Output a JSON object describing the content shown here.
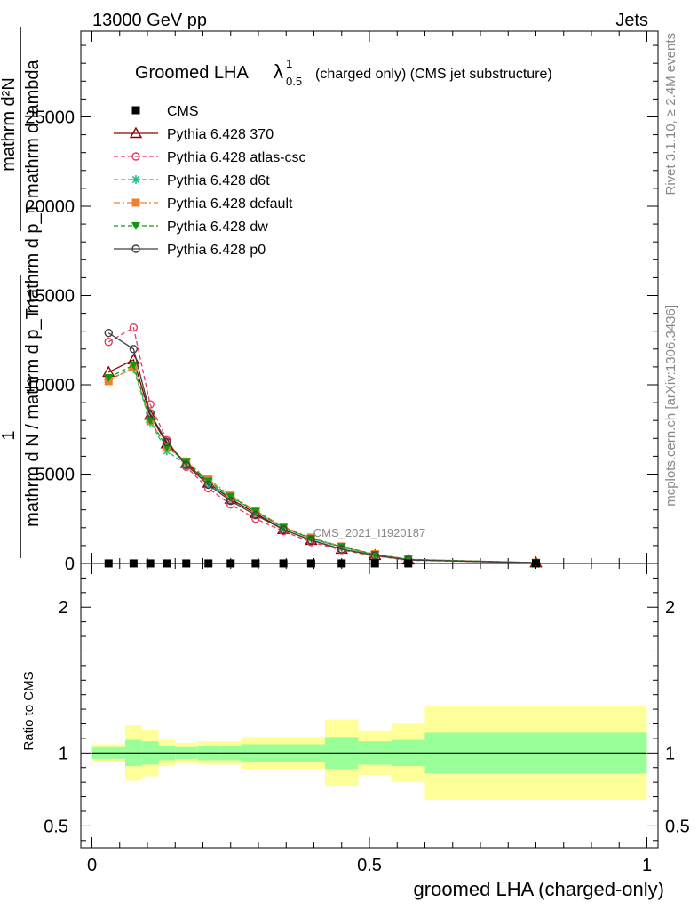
{
  "header": {
    "left": "13000 GeV pp",
    "right": "Jets"
  },
  "title": {
    "main": "Groomed LHA",
    "lambda": "λ",
    "sup": "1",
    "sub": "0.5",
    "rest": "(charged only) (CMS jet substructure)"
  },
  "side_labels": {
    "rivet": "Rivet 3.1.10, ≥ 2.4M events",
    "mcplots": "mcplots.cern.ch [arXiv:1306.3436]"
  },
  "watermark": "CMS_2021_I1920187",
  "main_ylabel": {
    "num1": "mathrm d²N",
    "den1": "mathrm d p_T mathrm d lambda",
    "num2": "1",
    "den2": "mathrm d N / mathrm d p_T"
  },
  "ratio_ylabel": "Ratio to CMS",
  "xlabel": "groomed LHA (charged-only)",
  "legend": [
    {
      "name": "CMS",
      "color": "#000000",
      "marker": "square-filled",
      "dash": "none"
    },
    {
      "name": "Pythia 6.428 370",
      "color": "#8b0000",
      "marker": "triangle-open",
      "dash": "solid"
    },
    {
      "name": "Pythia 6.428 atlas-csc",
      "color": "#e8385b",
      "marker": "circle-open",
      "dash": "dashed"
    },
    {
      "name": "Pythia 6.428 d6t",
      "color": "#1dbf8a",
      "marker": "star",
      "dash": "dashed"
    },
    {
      "name": "Pythia 6.428 default",
      "color": "#f08030",
      "marker": "square-filled",
      "dash": "dashdot"
    },
    {
      "name": "Pythia 6.428 dw",
      "color": "#109a10",
      "marker": "triangle-down-filled",
      "dash": "dashed"
    },
    {
      "name": "Pythia 6.428 p0",
      "color": "#404040",
      "marker": "circle-open",
      "dash": "solid"
    }
  ],
  "chart_data": {
    "type": "line",
    "x": [
      0.03,
      0.075,
      0.105,
      0.135,
      0.17,
      0.21,
      0.25,
      0.295,
      0.345,
      0.395,
      0.45,
      0.51,
      0.57,
      0.8
    ],
    "xlim": [
      -0.02,
      1.02
    ],
    "main_ylim": [
      0,
      29800
    ],
    "main_yticks": [
      {
        "v": 0,
        "label": "0"
      },
      {
        "v": 5000,
        "label": "5000"
      },
      {
        "v": 10000,
        "label": "10000"
      },
      {
        "v": 15000,
        "label": "15000"
      },
      {
        "v": 20000,
        "label": "20000"
      },
      {
        "v": 25000,
        "label": "25000"
      }
    ],
    "ratio_ylim": [
      0.35,
      2.3
    ],
    "ratio_yticks": [
      {
        "v": 0.5,
        "label": "0.5"
      },
      {
        "v": 1,
        "label": "1"
      },
      {
        "v": 2,
        "label": "2"
      }
    ],
    "xticks": [
      {
        "v": 0,
        "label": "0"
      },
      {
        "v": 0.5,
        "label": "0.5"
      },
      {
        "v": 1,
        "label": "1"
      }
    ],
    "cms": [
      3,
      3,
      3,
      3,
      3,
      3,
      3,
      3,
      3,
      3,
      3,
      3,
      3,
      3
    ],
    "series": [
      {
        "name": "Pythia 6.428 370",
        "values": [
          10700,
          11400,
          8300,
          6700,
          5600,
          4500,
          3600,
          2800,
          1900,
          1300,
          800,
          450,
          200,
          40
        ]
      },
      {
        "name": "Pythia 6.428 atlas-csc",
        "values": [
          12400,
          13200,
          8900,
          6900,
          5400,
          4200,
          3300,
          2500,
          1800,
          1200,
          750,
          420,
          180,
          35
        ]
      },
      {
        "name": "Pythia 6.428 d6t",
        "values": [
          10300,
          10900,
          7900,
          6300,
          5500,
          4500,
          3700,
          2900,
          2000,
          1400,
          900,
          500,
          230,
          45
        ]
      },
      {
        "name": "Pythia 6.428 default",
        "values": [
          10200,
          11000,
          8000,
          6500,
          5700,
          4700,
          3800,
          2950,
          2050,
          1450,
          950,
          520,
          240,
          45
        ]
      },
      {
        "name": "Pythia 6.428 dw",
        "values": [
          10400,
          11100,
          8000,
          6500,
          5700,
          4600,
          3750,
          2900,
          2000,
          1400,
          930,
          500,
          230,
          45
        ]
      },
      {
        "name": "Pythia 6.428 p0",
        "values": [
          12900,
          12000,
          8400,
          6800,
          5500,
          4400,
          3500,
          2700,
          1900,
          1300,
          800,
          450,
          200,
          40
        ]
      }
    ],
    "ratio_bands": {
      "edges": [
        0.0,
        0.06,
        0.09,
        0.12,
        0.15,
        0.19,
        0.23,
        0.27,
        0.32,
        0.37,
        0.42,
        0.48,
        0.54,
        0.6,
        1.0
      ],
      "stat_lo": [
        0.96,
        0.91,
        0.92,
        0.95,
        0.96,
        0.95,
        0.95,
        0.94,
        0.94,
        0.94,
        0.89,
        0.92,
        0.91,
        0.86
      ],
      "stat_hi": [
        1.04,
        1.09,
        1.08,
        1.05,
        1.04,
        1.05,
        1.05,
        1.06,
        1.06,
        1.06,
        1.11,
        1.08,
        1.09,
        1.14
      ],
      "syst_lo": [
        0.94,
        0.81,
        0.84,
        0.91,
        0.93,
        0.92,
        0.92,
        0.89,
        0.89,
        0.89,
        0.77,
        0.85,
        0.8,
        0.68
      ],
      "syst_hi": [
        1.06,
        1.19,
        1.16,
        1.09,
        1.07,
        1.08,
        1.08,
        1.11,
        1.11,
        1.11,
        1.23,
        1.15,
        1.2,
        1.32
      ]
    },
    "colors": {
      "stat": "#99ff99",
      "syst": "#ffff99"
    }
  }
}
